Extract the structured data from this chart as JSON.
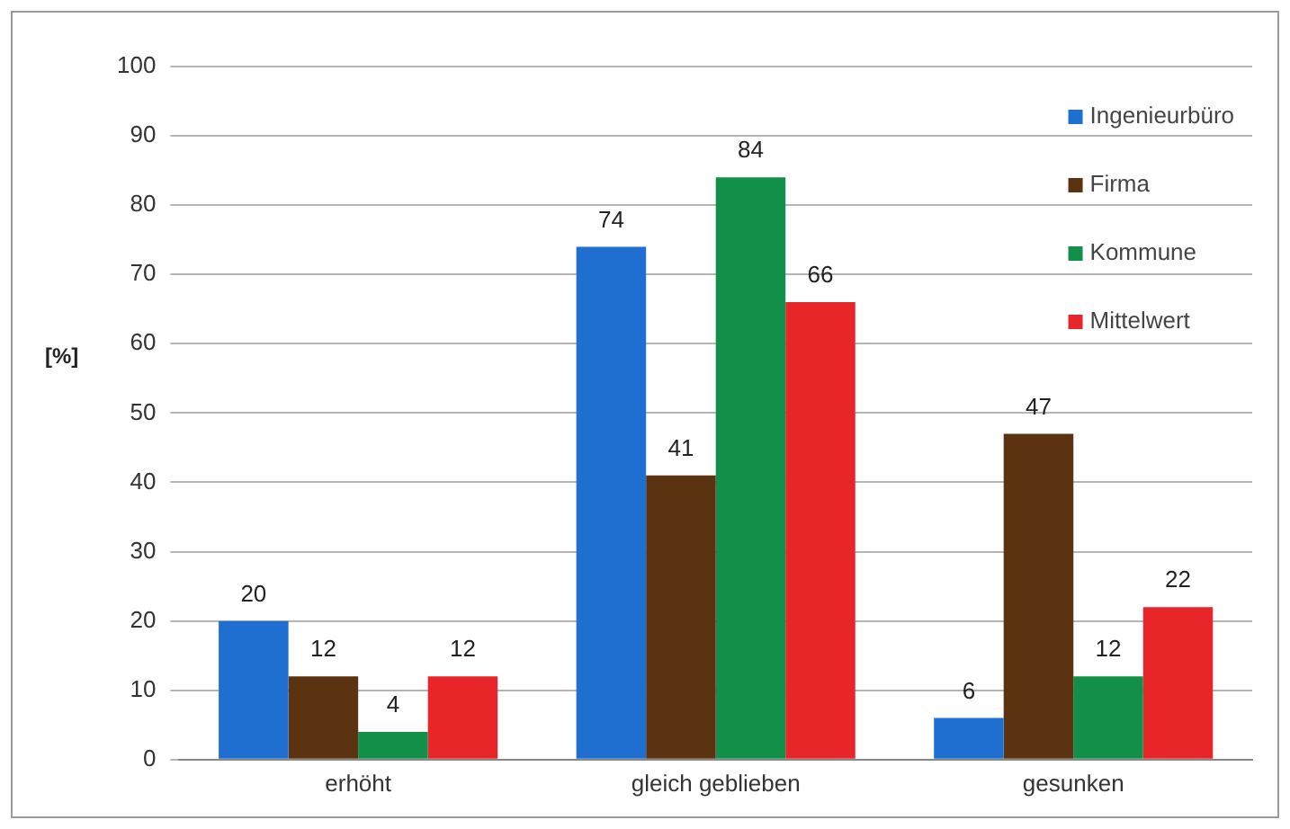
{
  "chart_data": {
    "type": "bar",
    "ylabel": "[%]",
    "categories": [
      "erhöht",
      "gleich geblieben",
      "gesunken"
    ],
    "series": [
      {
        "name": "Ingenieurbüro",
        "color": "#1f6fd0",
        "values": [
          20,
          74,
          6
        ]
      },
      {
        "name": "Firma",
        "color": "#5c3311",
        "values": [
          12,
          41,
          47
        ]
      },
      {
        "name": "Kommune",
        "color": "#12904a",
        "values": [
          4,
          84,
          12
        ]
      },
      {
        "name": "Mittelwert",
        "color": "#e8262a",
        "values": [
          12,
          66,
          22
        ]
      }
    ],
    "ylim": [
      0,
      100
    ],
    "yticks": [
      0,
      10,
      20,
      30,
      40,
      50,
      60,
      70,
      80,
      90,
      100
    ],
    "grid": "y",
    "legend": "top right",
    "data_labels": true
  }
}
